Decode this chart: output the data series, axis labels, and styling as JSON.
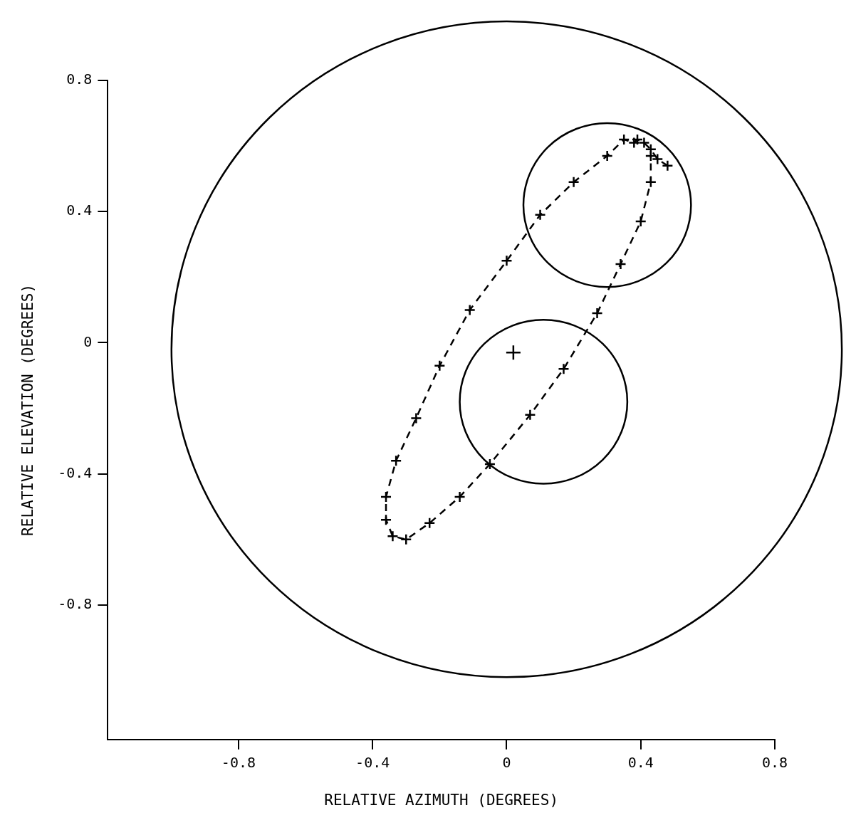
{
  "chart_data": {
    "type": "line",
    "xlabel": "RELATIVE AZIMUTH (DEGREES)",
    "ylabel": "RELATIVE ELEVATION (DEGREES)",
    "xlim": [
      -1.19,
      0.8
    ],
    "ylim": [
      -1.21,
      0.8
    ],
    "xticks": [
      -0.8,
      -0.4,
      0,
      0.4,
      0.8
    ],
    "yticks": [
      -0.8,
      -0.4,
      0,
      0.4,
      0.8
    ],
    "series": [
      {
        "type": "line",
        "color": "#000000",
        "marker": "cross",
        "line_style": "dashed",
        "x": [
          0.48,
          0.45,
          0.43,
          0.41,
          0.39,
          0.38,
          0.35,
          0.3,
          0.2,
          0.1,
          0.0,
          -0.11,
          -0.2,
          -0.27,
          -0.33,
          -0.36,
          -0.36,
          -0.34,
          -0.3,
          -0.23,
          -0.14,
          -0.05,
          0.07,
          0.17,
          0.27,
          0.34,
          0.4,
          0.43,
          0.43
        ],
        "values": [
          0.54,
          0.56,
          0.59,
          0.61,
          0.62,
          0.61,
          0.62,
          0.57,
          0.49,
          0.39,
          0.25,
          0.1,
          -0.07,
          -0.23,
          -0.36,
          -0.47,
          -0.54,
          -0.59,
          -0.6,
          -0.55,
          -0.47,
          -0.37,
          -0.22,
          -0.08,
          0.09,
          0.24,
          0.37,
          0.49,
          0.57
        ]
      },
      {
        "type": "scatter",
        "color": "#000000",
        "marker": "cross",
        "x": [
          0.02
        ],
        "values": [
          -0.03
        ]
      }
    ]
  }
}
